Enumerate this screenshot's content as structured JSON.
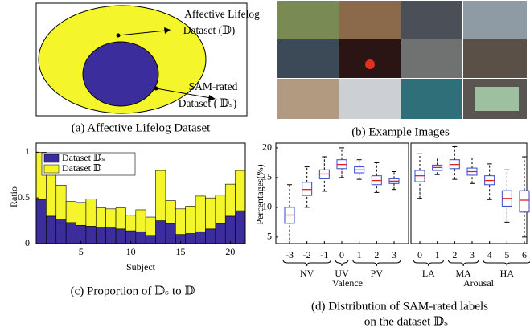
{
  "diagram": {
    "outer_label": [
      "Affective Lifelog",
      "Dataset (𝔻)"
    ],
    "inner_label": [
      "SAM-rated",
      "Dataset ( 𝔻ₛ)"
    ],
    "caption": "(a) Affective Lifelog Dataset"
  },
  "images": {
    "caption": "(b) Example Images"
  },
  "chart_data": [
    {
      "type": "bar",
      "stacked": true,
      "caption": "(c) Proportion of 𝔻ₛ to 𝔻",
      "x_label": "Subject",
      "y_label": "Ratio",
      "x": [
        1,
        2,
        3,
        4,
        5,
        6,
        7,
        8,
        9,
        10,
        11,
        12,
        13,
        14,
        15,
        16,
        17,
        18,
        19,
        20,
        21
      ],
      "xlim": [
        0.5,
        21.5
      ],
      "xticks": [
        5,
        10,
        15,
        20
      ],
      "ylim": [
        0,
        1.1
      ],
      "yticks": [
        0,
        0.5,
        1
      ],
      "legend": "upper-left",
      "series": [
        {
          "name": "Dataset 𝔻ₛ",
          "color": "#3b2d9c",
          "values": [
            0.48,
            0.3,
            0.27,
            0.23,
            0.2,
            0.19,
            0.18,
            0.18,
            0.16,
            0.14,
            0.13,
            0.09,
            0.25,
            0.22,
            0.1,
            0.11,
            0.13,
            0.16,
            0.22,
            0.3,
            0.36
          ]
        },
        {
          "name": "Dataset 𝔻",
          "color": "#f5f52c",
          "values": [
            0.52,
            0.47,
            0.37,
            0.23,
            0.25,
            0.3,
            0.21,
            0.2,
            0.23,
            0.17,
            0.24,
            0.2,
            0.55,
            0.25,
            0.28,
            0.3,
            0.39,
            0.34,
            0.31,
            0.35,
            0.44
          ]
        }
      ]
    },
    {
      "type": "box",
      "caption": [
        "(d) Distribution of SAM-rated labels",
        "on the dataset  𝔻ₛ"
      ],
      "y_label": "Percentages(%)",
      "ylim": [
        3.9,
        20.8
      ],
      "yticks": [
        5,
        10,
        15,
        20
      ],
      "box_color": "#3344cc",
      "median_color": "#e02020",
      "subplots": [
        {
          "x_label": "Valence",
          "groups": [
            "NV",
            "UV",
            "PV"
          ],
          "categories": [
            -3,
            -2,
            -1,
            0,
            1,
            2,
            3
          ],
          "boxes": [
            {
              "low": 4.5,
              "q1": 7.3,
              "median": 8.7,
              "q3": 10,
              "high": 13.8
            },
            {
              "low": 10,
              "q1": 12,
              "median": 13,
              "q3": 14.2,
              "high": 16.8
            },
            {
              "low": 12.7,
              "q1": 14.8,
              "median": 15.6,
              "q3": 16.3,
              "high": 18.5
            },
            {
              "low": 15,
              "q1": 16.5,
              "median": 17.2,
              "q3": 18,
              "high": 20
            },
            {
              "low": 14.7,
              "q1": 15.8,
              "median": 16.3,
              "q3": 16.8,
              "high": 18
            },
            {
              "low": 12.5,
              "q1": 13.8,
              "median": 14.5,
              "q3": 15.3,
              "high": 17.5
            },
            {
              "low": 13,
              "q1": 14,
              "median": 14.4,
              "q3": 14.8,
              "high": 16
            }
          ]
        },
        {
          "x_label": "Arousal",
          "groups": [
            "LA",
            "MA",
            "HA"
          ],
          "categories": [
            0,
            1,
            2,
            3,
            4,
            5,
            6
          ],
          "boxes": [
            {
              "low": 11.5,
              "q1": 14.3,
              "median": 15.3,
              "q3": 16.2,
              "high": 19
            },
            {
              "low": 15.5,
              "q1": 16.2,
              "median": 16.7,
              "q3": 17.1,
              "high": 18.3
            },
            {
              "low": 14.7,
              "q1": 16.5,
              "median": 17.2,
              "q3": 18,
              "high": 20.2
            },
            {
              "low": 14,
              "q1": 15.4,
              "median": 16,
              "q3": 16.6,
              "high": 18.3
            },
            {
              "low": 11.3,
              "q1": 13.8,
              "median": 14.5,
              "q3": 15.3,
              "high": 17.3
            },
            {
              "low": 7.5,
              "q1": 10.2,
              "median": 11.5,
              "q3": 12.8,
              "high": 16.3
            },
            {
              "low": 5,
              "q1": 9.2,
              "median": 11.2,
              "q3": 12.8,
              "high": 18.5
            }
          ]
        }
      ]
    }
  ]
}
